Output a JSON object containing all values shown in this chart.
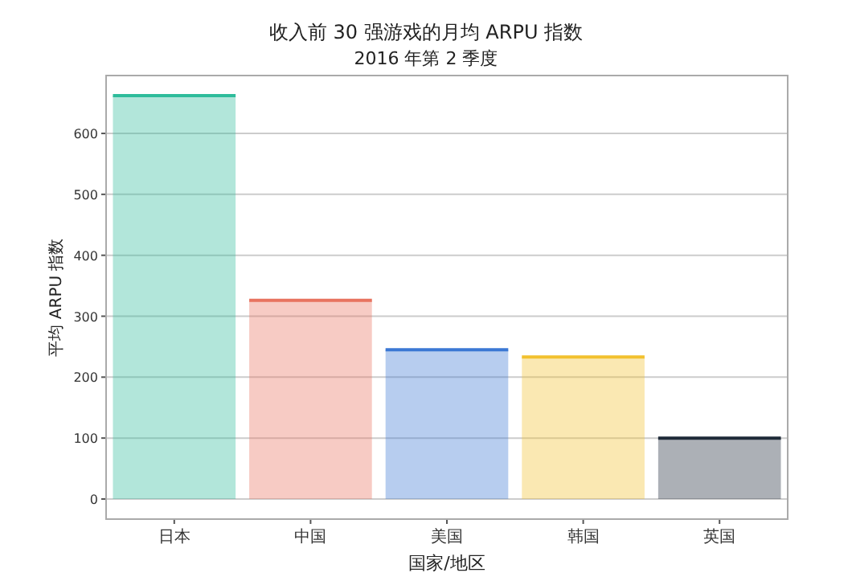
{
  "chart_data": {
    "type": "bar",
    "title": "收入前 30 强游戏的月均 ARPU 指数",
    "subtitle": "2016 年第 2 季度",
    "xlabel": "国家/地区",
    "ylabel": "平均 ARPU 指数",
    "categories": [
      "日本",
      "中国",
      "美国",
      "韩国",
      "英国"
    ],
    "values": [
      662,
      326,
      245,
      233,
      100
    ],
    "colors": [
      "#2ebc9b",
      "#e8735f",
      "#3b78d4",
      "#f2c12e",
      "#1e2a38"
    ],
    "ylim": [
      -33,
      695
    ],
    "yticks": [
      0,
      100,
      200,
      300,
      400,
      500,
      600
    ],
    "grid": "y"
  }
}
